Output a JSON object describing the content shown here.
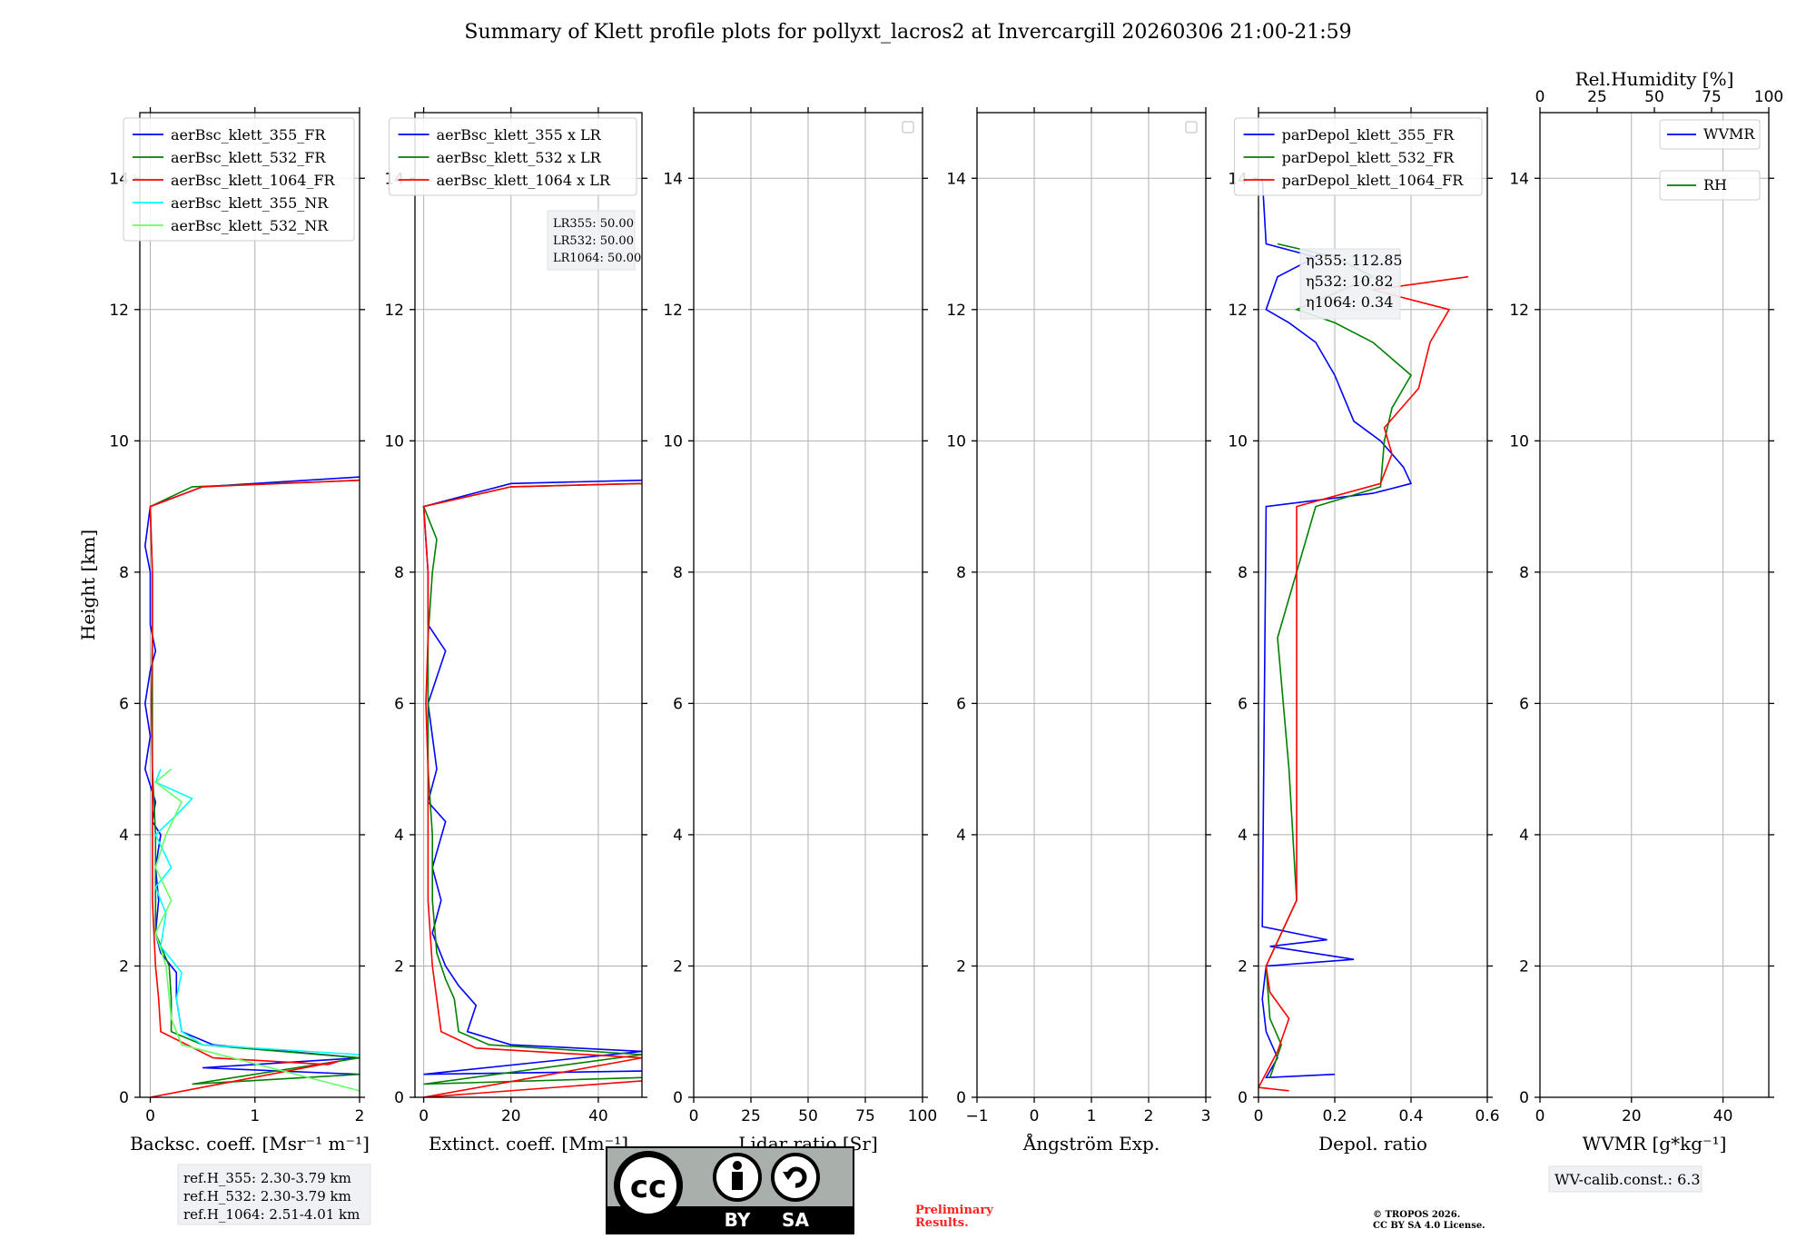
{
  "figure": {
    "title": "Summary of Klett profile plots for pollyxt_lacros2 at Invercargill 20260306 21:00-21:59",
    "ylabel": "Height [km]",
    "ref_heights": [
      "ref.H_355: 2.30-3.79 km",
      "ref.H_532: 2.30-3.79 km",
      "ref.H_1064: 2.51-4.01 km"
    ],
    "wv_calib": "WV-calib.const.: 6.3",
    "preliminary": [
      "Preliminary",
      "Results."
    ],
    "copyright": [
      "© TROPOS 2026.",
      "CC BY SA 4.0 License."
    ],
    "license_badge": {
      "cc": "cc",
      "by": "BY",
      "sa": "SA"
    }
  },
  "colors": {
    "blue": "#0000ff",
    "green": "#008000",
    "red": "#ff0000",
    "cyan": "#00ffff",
    "lightgreen": "#66ff66",
    "grid": "#b0b0b0"
  },
  "chart_data": [
    {
      "type": "line",
      "id": "backscatter",
      "xlabel": "Backsc. coeff. [Msr⁻¹ m⁻¹]",
      "ylabel": "Height [km]",
      "xlim": [
        -0.1,
        2
      ],
      "ylim": [
        0,
        15
      ],
      "xticks": [
        0,
        1,
        2
      ],
      "yticks": [
        0,
        2,
        4,
        6,
        8,
        10,
        12,
        14
      ],
      "legend": "top-right",
      "series": [
        {
          "name": "aerBsc_klett_355_FR",
          "color": "blue",
          "points": [
            [
              2,
              0.35
            ],
            [
              0.5,
              0.45
            ],
            [
              2,
              0.6
            ],
            [
              0.6,
              0.8
            ],
            [
              0.3,
              1.0
            ],
            [
              0.25,
              1.5
            ],
            [
              0.25,
              1.9
            ],
            [
              0.1,
              2.2
            ],
            [
              0.05,
              2.5
            ],
            [
              0.08,
              3.0
            ],
            [
              0.05,
              3.5
            ],
            [
              0.1,
              4.0
            ],
            [
              0.02,
              4.2
            ],
            [
              0.05,
              4.5
            ],
            [
              -0.05,
              5.0
            ],
            [
              0.0,
              5.5
            ],
            [
              -0.05,
              6.0
            ],
            [
              0.0,
              6.5
            ],
            [
              0.05,
              6.8
            ],
            [
              0.0,
              7.2
            ],
            [
              0.0,
              8.0
            ],
            [
              -0.05,
              8.4
            ],
            [
              0.0,
              9.0
            ],
            [
              0.5,
              9.3
            ],
            [
              2,
              9.45
            ]
          ]
        },
        {
          "name": "aerBsc_klett_532_FR",
          "color": "green",
          "points": [
            [
              2,
              0.35
            ],
            [
              0.4,
              0.2
            ],
            [
              2,
              0.6
            ],
            [
              0.5,
              0.8
            ],
            [
              0.2,
              1.0
            ],
            [
              0.2,
              1.5
            ],
            [
              0.18,
              2.0
            ],
            [
              0.05,
              2.5
            ],
            [
              0.05,
              3.0
            ],
            [
              0.05,
              4.0
            ],
            [
              0.02,
              5.0
            ],
            [
              0.02,
              6.0
            ],
            [
              0.02,
              7.0
            ],
            [
              0.02,
              8.0
            ],
            [
              0.0,
              9.0
            ],
            [
              0.4,
              9.3
            ],
            [
              2,
              9.4
            ]
          ]
        },
        {
          "name": "aerBsc_klett_1064_FR",
          "color": "red",
          "points": [
            [
              0,
              0.0
            ],
            [
              1.8,
              0.55
            ],
            [
              1.7,
              0.5
            ],
            [
              0.6,
              0.6
            ],
            [
              0.1,
              1.0
            ],
            [
              0.08,
              1.5
            ],
            [
              0.05,
              2.0
            ],
            [
              0.02,
              3.0
            ],
            [
              0.02,
              4.0
            ],
            [
              0.02,
              5.0
            ],
            [
              0.01,
              6.0
            ],
            [
              0.02,
              7.0
            ],
            [
              0.02,
              8.0
            ],
            [
              0.0,
              9.0
            ],
            [
              0.5,
              9.3
            ],
            [
              2,
              9.4
            ]
          ]
        },
        {
          "name": "aerBsc_klett_355_NR",
          "color": "cyan",
          "points": [
            [
              2,
              0.65
            ],
            [
              0.5,
              0.8
            ],
            [
              0.3,
              1.0
            ],
            [
              0.25,
              1.5
            ],
            [
              0.3,
              1.9
            ],
            [
              0.1,
              2.3
            ],
            [
              0.15,
              2.8
            ],
            [
              0.05,
              3.2
            ],
            [
              0.2,
              3.5
            ],
            [
              0.05,
              4.0
            ],
            [
              0.25,
              4.3
            ],
            [
              0.4,
              4.55
            ],
            [
              0.05,
              4.8
            ],
            [
              0.1,
              5.0
            ]
          ]
        },
        {
          "name": "aerBsc_klett_532_NR",
          "color": "lightgreen",
          "points": [
            [
              2,
              0.1
            ],
            [
              0.3,
              0.8
            ],
            [
              0.2,
              1.2
            ],
            [
              0.15,
              2.0
            ],
            [
              0.05,
              2.5
            ],
            [
              0.2,
              3.0
            ],
            [
              0.05,
              3.5
            ],
            [
              0.15,
              4.0
            ],
            [
              0.3,
              4.5
            ],
            [
              0.05,
              4.8
            ],
            [
              0.2,
              5.0
            ]
          ]
        }
      ]
    },
    {
      "type": "line",
      "id": "extinction",
      "xlabel": "Extinct. coeff. [Mm⁻¹]",
      "xlim": [
        -2,
        50
      ],
      "ylim": [
        0,
        15
      ],
      "xticks": [
        0,
        20,
        40
      ],
      "yticks": [
        0,
        2,
        4,
        6,
        8,
        10,
        12,
        14
      ],
      "legend": "top-right",
      "annotation": [
        "LR355: 50.00",
        "LR532: 50.00",
        "LR1064: 50.00"
      ],
      "series": [
        {
          "name": "aerBsc_klett_355 x LR",
          "color": "blue",
          "points": [
            [
              50,
              0.4
            ],
            [
              0,
              0.35
            ],
            [
              50,
              0.7
            ],
            [
              20,
              0.8
            ],
            [
              10,
              1.0
            ],
            [
              12,
              1.4
            ],
            [
              8,
              1.7
            ],
            [
              5,
              2.0
            ],
            [
              2,
              2.5
            ],
            [
              4,
              3.0
            ],
            [
              2,
              3.5
            ],
            [
              5,
              4.2
            ],
            [
              1,
              4.5
            ],
            [
              3,
              5.0
            ],
            [
              1,
              6.0
            ],
            [
              5,
              6.8
            ],
            [
              1,
              7.2
            ],
            [
              1,
              8.0
            ],
            [
              0,
              9.0
            ],
            [
              20,
              9.35
            ],
            [
              50,
              9.4
            ]
          ]
        },
        {
          "name": "aerBsc_klett_532 x LR",
          "color": "green",
          "points": [
            [
              50,
              0.3
            ],
            [
              0,
              0.2
            ],
            [
              50,
              0.65
            ],
            [
              15,
              0.8
            ],
            [
              8,
              1.0
            ],
            [
              7,
              1.5
            ],
            [
              5,
              1.8
            ],
            [
              3,
              2.2
            ],
            [
              2,
              3.0
            ],
            [
              2,
              4.0
            ],
            [
              1,
              5.0
            ],
            [
              1,
              6.0
            ],
            [
              1,
              7.0
            ],
            [
              2,
              8.0
            ],
            [
              3,
              8.5
            ],
            [
              0,
              9.0
            ],
            [
              20,
              9.3
            ],
            [
              50,
              9.35
            ]
          ]
        },
        {
          "name": "aerBsc_klett_1064 x LR",
          "color": "red",
          "points": [
            [
              50,
              0.25
            ],
            [
              0,
              0.0
            ],
            [
              50,
              0.6
            ],
            [
              12,
              0.75
            ],
            [
              4,
              1.0
            ],
            [
              3,
              1.5
            ],
            [
              2,
              2.0
            ],
            [
              1,
              3.0
            ],
            [
              1,
              4.0
            ],
            [
              1,
              5.0
            ],
            [
              0.5,
              6.0
            ],
            [
              1,
              7.0
            ],
            [
              1,
              8.0
            ],
            [
              0,
              9.0
            ],
            [
              20,
              9.3
            ],
            [
              50,
              9.35
            ]
          ]
        }
      ]
    },
    {
      "type": "line",
      "id": "lidar_ratio",
      "xlabel": "Lidar ratio [Sr]",
      "xlim": [
        0,
        100
      ],
      "ylim": [
        0,
        15
      ],
      "xticks": [
        0,
        25,
        50,
        75,
        100
      ],
      "yticks": [
        0,
        2,
        4,
        6,
        8,
        10,
        12,
        14
      ],
      "series": []
    },
    {
      "type": "line",
      "id": "angstrom",
      "xlabel": "Ångström Exp.",
      "xlim": [
        -1,
        3
      ],
      "ylim": [
        0,
        15
      ],
      "xticks": [
        -1,
        0,
        1,
        2,
        3
      ],
      "yticks": [
        0,
        2,
        4,
        6,
        8,
        10,
        12,
        14
      ],
      "series": []
    },
    {
      "type": "line",
      "id": "depol",
      "xlabel": "Depol. ratio",
      "xlim": [
        0,
        0.6
      ],
      "ylim": [
        0,
        15
      ],
      "xticks": [
        0.0,
        0.2,
        0.4,
        0.6
      ],
      "yticks": [
        0,
        2,
        4,
        6,
        8,
        10,
        12,
        14
      ],
      "legend": "top-right",
      "annotation": [
        "η355: 112.85",
        "η532: 10.82",
        "η1064: 0.34"
      ],
      "series": [
        {
          "name": "parDepol_klett_355_FR",
          "color": "blue",
          "points": [
            [
              0.2,
              0.35
            ],
            [
              0.02,
              0.3
            ],
            [
              0.05,
              0.6
            ],
            [
              0.02,
              1.0
            ],
            [
              0.01,
              1.5
            ],
            [
              0.02,
              2.0
            ],
            [
              0.25,
              2.1
            ],
            [
              0.03,
              2.3
            ],
            [
              0.18,
              2.4
            ],
            [
              0.01,
              2.6
            ],
            [
              0.02,
              9.0
            ],
            [
              0.3,
              9.2
            ],
            [
              0.4,
              9.35
            ],
            [
              0.38,
              9.6
            ],
            [
              0.32,
              10.0
            ],
            [
              0.25,
              10.3
            ],
            [
              0.2,
              11.0
            ],
            [
              0.15,
              11.5
            ],
            [
              0.08,
              11.8
            ],
            [
              0.02,
              12.0
            ],
            [
              0.05,
              12.5
            ],
            [
              0.15,
              12.8
            ],
            [
              0.02,
              13.0
            ],
            [
              0.01,
              14.0
            ]
          ]
        },
        {
          "name": "parDepol_klett_532_FR",
          "color": "green",
          "points": [
            [
              0.03,
              0.3
            ],
            [
              0.06,
              0.8
            ],
            [
              0.03,
              1.2
            ],
            [
              0.02,
              2.0
            ],
            [
              0.1,
              3.0
            ],
            [
              0.08,
              5.0
            ],
            [
              0.05,
              7.0
            ],
            [
              0.15,
              9.0
            ],
            [
              0.32,
              9.3
            ],
            [
              0.33,
              10.0
            ],
            [
              0.35,
              10.5
            ],
            [
              0.4,
              11.0
            ],
            [
              0.3,
              11.5
            ],
            [
              0.2,
              11.8
            ],
            [
              0.1,
              12.0
            ],
            [
              0.3,
              12.5
            ],
            [
              0.2,
              12.8
            ],
            [
              0.05,
              13.0
            ]
          ]
        },
        {
          "name": "parDepol_klett_1064_FR",
          "color": "red",
          "points": [
            [
              0.08,
              0.1
            ],
            [
              0.0,
              0.15
            ],
            [
              0.05,
              0.7
            ],
            [
              0.08,
              1.2
            ],
            [
              0.03,
              1.6
            ],
            [
              0.02,
              2.0
            ],
            [
              0.1,
              3.0
            ],
            [
              0.1,
              5.0
            ],
            [
              0.1,
              7.0
            ],
            [
              0.1,
              9.0
            ],
            [
              0.32,
              9.35
            ],
            [
              0.35,
              9.8
            ],
            [
              0.33,
              10.2
            ],
            [
              0.42,
              10.8
            ],
            [
              0.45,
              11.5
            ],
            [
              0.5,
              12.0
            ],
            [
              0.3,
              12.3
            ],
            [
              0.55,
              12.5
            ]
          ]
        }
      ]
    },
    {
      "type": "line",
      "id": "wvmr",
      "xlabel": "WVMR [g*kg⁻¹]",
      "x2label": "Rel.Humidity [%]",
      "xlim": [
        0,
        50
      ],
      "x2lim": [
        0,
        100
      ],
      "ylim": [
        0,
        15
      ],
      "xticks": [
        0,
        20,
        40
      ],
      "x2ticks": [
        0,
        25,
        50,
        75,
        100
      ],
      "yticks": [
        0,
        2,
        4,
        6,
        8,
        10,
        12,
        14
      ],
      "legend": "top-right",
      "series": [
        {
          "name": "WVMR",
          "color": "blue",
          "points": []
        },
        {
          "name": "RH",
          "color": "green",
          "points": []
        }
      ]
    }
  ]
}
